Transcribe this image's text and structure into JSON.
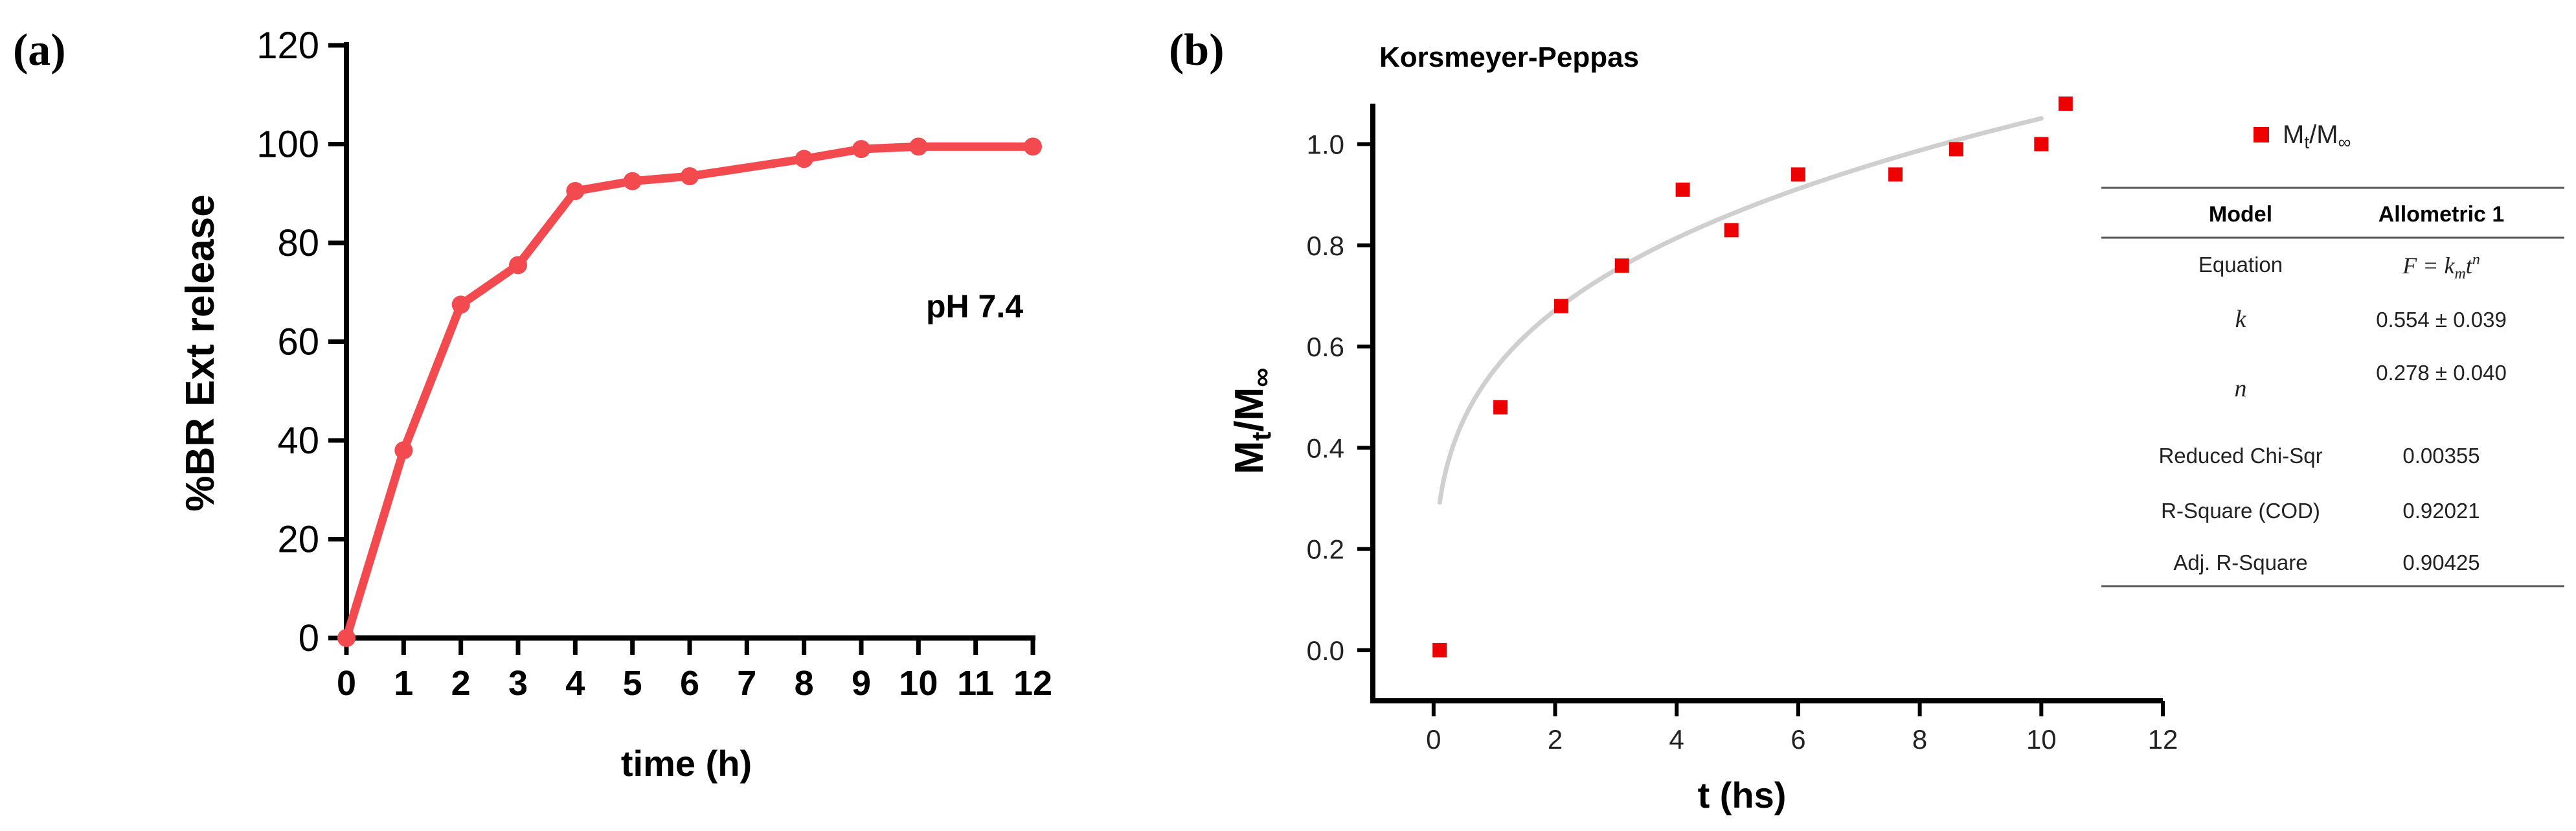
{
  "chart_data": [
    {
      "panel_label": "(a)",
      "type": "line",
      "title": "",
      "xlabel": "time (h)",
      "ylabel": "%BR Ext release",
      "annotation": "pH 7.4",
      "x": [
        0,
        1,
        2,
        3,
        4,
        5,
        6,
        8,
        9,
        10,
        12
      ],
      "series": [
        {
          "name": "pH 7.4",
          "values": [
            0,
            38,
            67.5,
            75.5,
            90.5,
            92.5,
            93.5,
            97,
            99,
            99.5,
            99.5
          ]
        }
      ],
      "xlim": [
        0,
        12
      ],
      "ylim": [
        0,
        120
      ],
      "xticks": [
        "0",
        "1",
        "2",
        "3",
        "4",
        "5",
        "6",
        "7",
        "8",
        "9",
        "10",
        "11",
        "12"
      ],
      "yticks": [
        "0",
        "20",
        "40",
        "60",
        "80",
        "100",
        "120"
      ],
      "color": "#f24a4f"
    },
    {
      "panel_label": "(b)",
      "type": "scatter",
      "title": "Korsmeyer-Peppas",
      "xlabel": "t (hs)",
      "ylabel": "Mt/M∞",
      "xlim": [
        -1,
        12
      ],
      "ylim": [
        -0.1,
        1.08
      ],
      "xticks": [
        "0",
        "2",
        "4",
        "6",
        "8",
        "10",
        "12"
      ],
      "yticks": [
        "0.0",
        "0.2",
        "0.4",
        "0.6",
        "0.8",
        "1.0"
      ],
      "legend": "Mt/M∞",
      "legend_position": "top-right",
      "series": [
        {
          "name": "Mt/M∞",
          "x": [
            0.1,
            1.1,
            2.1,
            3.1,
            4.1,
            4.9,
            6.0,
            7.6,
            8.6,
            10.0,
            10.4
          ],
          "values": [
            0.0,
            0.48,
            0.68,
            0.76,
            0.91,
            0.83,
            0.94,
            0.94,
            0.99,
            1.0,
            1.08
          ]
        }
      ],
      "fit": {
        "name": "Allometric 1 fit",
        "k": 0.554,
        "n": 0.278,
        "x_range": [
          0.1,
          10
        ],
        "color": "#cfcfcf"
      },
      "marker_color": "#ee0000",
      "table": {
        "headers": [
          "Model",
          "Allometric 1"
        ],
        "rows": [
          [
            "Equation",
            "F = kmtn"
          ],
          [
            "k",
            "0.554 ± 0.039"
          ],
          [
            "n",
            "0.278 ± 0.040"
          ],
          [
            "Reduced Chi-Sqr",
            "0.00355"
          ],
          [
            "R-Square (COD)",
            "0.92021"
          ],
          [
            "Adj. R-Square",
            "0.90425"
          ]
        ]
      }
    }
  ]
}
